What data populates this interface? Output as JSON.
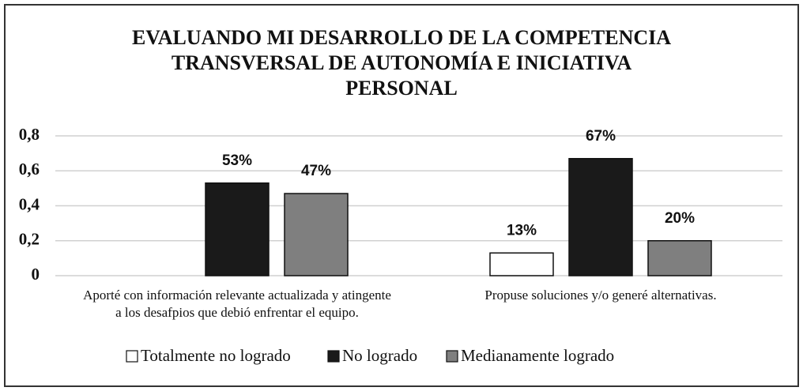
{
  "chart_data": {
    "type": "bar",
    "title": "EVALUANDO MI DESARROLLO DE LA COMPETENCIA\nTRANSVERSAL DE AUTONOMÍA E INICIATIVA\nPERSONAL",
    "categories": [
      "Aporté con información relevante actualizada y atingente\na los desafpios que debió enfrentar el equipo.",
      "Propuse soluciones y/o generé alternativas."
    ],
    "series": [
      {
        "name": "Totalmente no logrado",
        "color": "#ffffff",
        "values": [
          null,
          0.13
        ],
        "value_labels": [
          null,
          "13%"
        ]
      },
      {
        "name": "No logrado",
        "color": "#1a1a1a",
        "values": [
          0.53,
          0.67
        ],
        "value_labels": [
          "53%",
          "67%"
        ]
      },
      {
        "name": "Medianamente logrado",
        "color": "#7f7f7f",
        "values": [
          0.47,
          0.2
        ],
        "value_labels": [
          "47%",
          "20%"
        ]
      }
    ],
    "ylim": [
      0,
      0.8
    ],
    "yticks": [
      0,
      {
        "value": 0.2,
        "label": "0,2"
      },
      {
        "value": 0.4,
        "label": "0,4"
      },
      {
        "value": 0.6,
        "label": "0,6"
      },
      {
        "value": 0.8,
        "label": "0,8"
      }
    ],
    "grid": true,
    "legend": "bottom"
  }
}
